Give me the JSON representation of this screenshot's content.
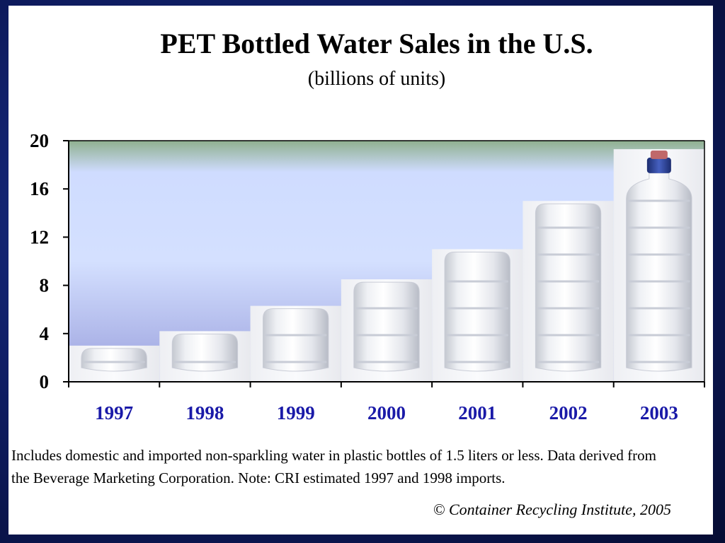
{
  "chart_data": {
    "type": "bar",
    "title": "PET Bottled Water Sales in the U.S.",
    "subtitle": "(billions of units)",
    "categories": [
      "1997",
      "1998",
      "1999",
      "2000",
      "2001",
      "2002",
      "2003"
    ],
    "values": [
      3.0,
      4.2,
      6.3,
      8.5,
      11.0,
      15.0,
      19.3
    ],
    "ylim": [
      0,
      20
    ],
    "yticks": [
      "0",
      "4",
      "8",
      "12",
      "16",
      "20"
    ],
    "grid": false,
    "bar_style": "water bottle images",
    "colors": {
      "plot_top": "#8fb08f",
      "plot_mid": "#d4e0ff",
      "plot_bottom": "#9aa0dd",
      "xtick": "#1a1aa8"
    }
  },
  "footnote": "Includes domestic and imported non-sparkling water in plastic bottles of 1.5 liters or less.  Data derived from the Beverage Marketing Corporation. Note: CRI estimated 1997 and 1998 imports.",
  "copyright": "© Container Recycling Institute, 2005"
}
